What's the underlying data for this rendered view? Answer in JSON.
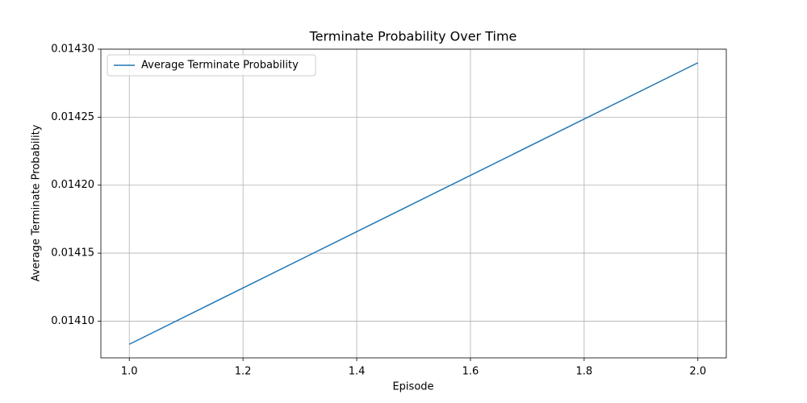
{
  "chart_data": {
    "type": "line",
    "title": "Terminate Probability Over Time",
    "x_label": "Episode",
    "y_label": "Average Terminate Probability",
    "x": [
      1.0,
      2.0
    ],
    "series": [
      {
        "name": "Average Terminate Probability",
        "color": "#1f77b4",
        "values": [
          0.014083,
          0.01429
        ]
      }
    ],
    "xlim": [
      0.95,
      2.05
    ],
    "xticks": [
      {
        "value": 1.0,
        "label": "1.0"
      },
      {
        "value": 1.2,
        "label": "1.2"
      },
      {
        "value": 1.4,
        "label": "1.4"
      },
      {
        "value": 1.6,
        "label": "1.6"
      },
      {
        "value": 1.8,
        "label": "1.8"
      },
      {
        "value": 2.0,
        "label": "2.0"
      }
    ],
    "ylim": [
      0.014073,
      0.0143
    ],
    "yticks": [
      {
        "value": 0.0141,
        "label": "0.01410"
      },
      {
        "value": 0.01415,
        "label": "0.01415"
      },
      {
        "value": 0.0142,
        "label": "0.01420"
      },
      {
        "value": 0.01425,
        "label": "0.01425"
      },
      {
        "value": 0.0143,
        "label": "0.01430"
      }
    ],
    "grid": true,
    "legend": "upper-left"
  }
}
